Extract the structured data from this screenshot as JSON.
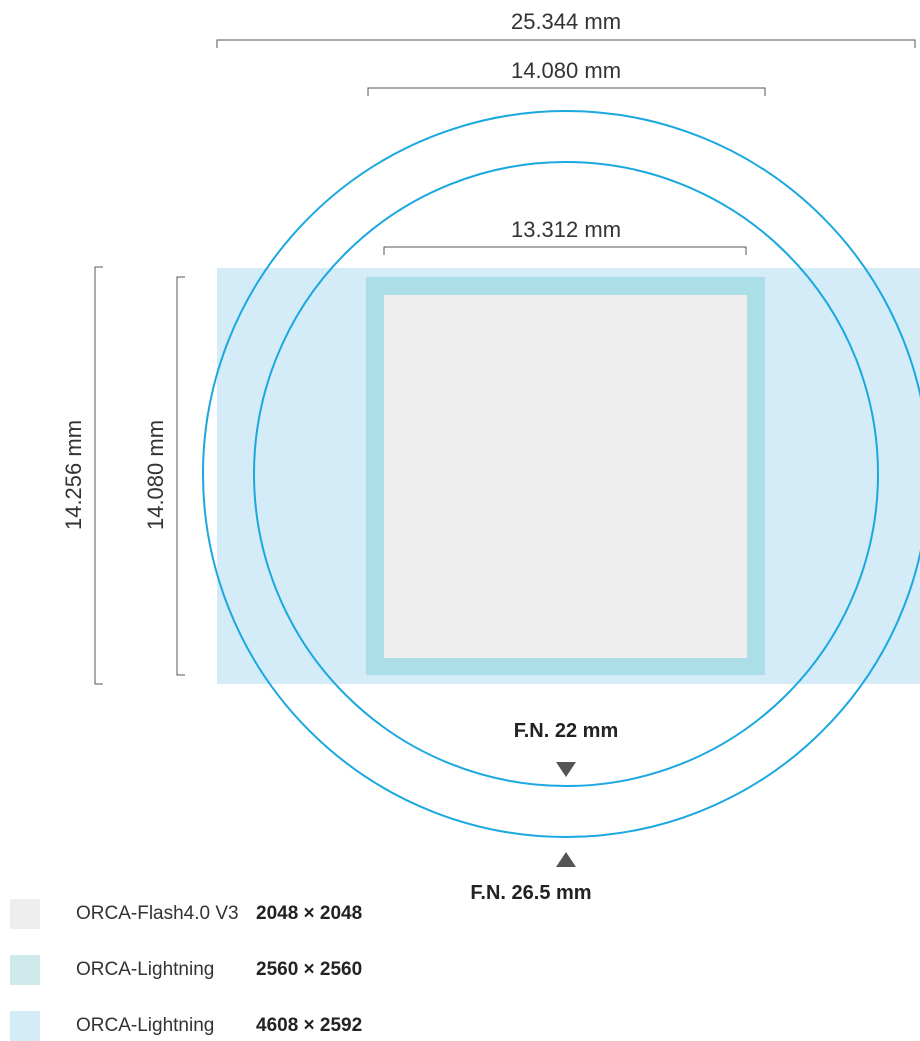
{
  "dimensions": {
    "top_outer": "25.344 mm",
    "top_middle": "14.080 mm",
    "inner": "13.312 mm",
    "left_outer": "14.256 mm",
    "left_inner": "14.080 mm"
  },
  "field_numbers": {
    "inner": "F.N. 22 mm",
    "outer": "F.N. 26.5 mm"
  },
  "legend": [
    {
      "name": "ORCA-Flash4.0 V3",
      "resolution": "2048 × 2048",
      "color": "#eeeeee"
    },
    {
      "name": "ORCA-Lightning",
      "resolution": "2560 × 2560",
      "color": "#cfeaea"
    },
    {
      "name": "ORCA-Lightning",
      "resolution": "4608 × 2592",
      "color": "#d3ecf8"
    }
  ],
  "colors": {
    "wide_sensor": "#d3ecf8",
    "square_sensor_border": "#abdee7",
    "flash_sensor": "#eeeeee",
    "circle_stroke": "#1ba8e0",
    "dimension_line": "#555555",
    "arrow": "#555555"
  }
}
